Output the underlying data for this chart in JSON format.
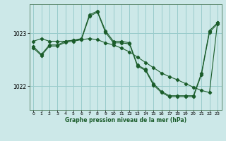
{
  "title": "Graphe pression niveau de la mer (hPa)",
  "background_color": "#cce8e8",
  "grid_color": "#99cccc",
  "line_color": "#1a5c2a",
  "xlim": [
    -0.5,
    23.5
  ],
  "ylim": [
    1021.55,
    1023.55
  ],
  "yticks": [
    1022,
    1023
  ],
  "xticks": [
    0,
    1,
    2,
    3,
    4,
    5,
    6,
    7,
    8,
    9,
    10,
    11,
    12,
    13,
    14,
    15,
    16,
    17,
    18,
    19,
    20,
    21,
    22,
    23
  ],
  "series": [
    {
      "x": [
        0,
        1,
        2,
        3,
        4,
        5,
        6,
        7,
        8,
        9,
        10,
        11,
        12,
        13,
        14,
        15,
        16,
        17,
        18,
        19,
        20,
        21,
        22,
        23
      ],
      "y": [
        1022.85,
        1022.9,
        1022.85,
        1022.85,
        1022.85,
        1022.87,
        1022.88,
        1022.9,
        1022.88,
        1022.82,
        1022.78,
        1022.72,
        1022.65,
        1022.55,
        1022.45,
        1022.35,
        1022.25,
        1022.18,
        1022.12,
        1022.05,
        1021.98,
        1021.92,
        1021.88,
        1023.2
      ]
    },
    {
      "x": [
        0,
        1,
        2,
        3,
        4,
        5,
        6,
        7,
        8,
        9,
        10,
        11,
        12,
        13,
        14,
        15,
        16,
        17,
        18,
        19,
        20,
        21,
        22,
        23
      ],
      "y": [
        1022.75,
        1022.6,
        1022.78,
        1022.78,
        1022.85,
        1022.87,
        1022.9,
        1023.35,
        1023.42,
        1023.05,
        1022.85,
        1022.85,
        1022.82,
        1022.4,
        1022.32,
        1022.05,
        1021.9,
        1021.82,
        1021.82,
        1021.82,
        1021.82,
        1022.25,
        1023.05,
        1023.2
      ]
    },
    {
      "x": [
        0,
        1,
        2,
        3,
        4,
        5,
        6,
        7,
        8,
        9,
        10,
        11,
        12,
        13,
        14,
        15,
        16,
        17,
        18,
        19,
        20,
        21,
        22,
        23
      ],
      "y": [
        1022.72,
        1022.58,
        1022.76,
        1022.76,
        1022.83,
        1022.85,
        1022.88,
        1023.32,
        1023.4,
        1023.02,
        1022.82,
        1022.82,
        1022.8,
        1022.38,
        1022.3,
        1022.02,
        1021.88,
        1021.8,
        1021.8,
        1021.8,
        1021.8,
        1022.22,
        1023.02,
        1023.18
      ]
    }
  ]
}
